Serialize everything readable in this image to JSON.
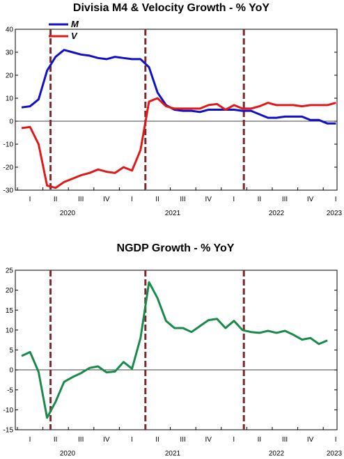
{
  "chart_data": [
    {
      "type": "line",
      "title": "Divisia M4 & Velocity Growth - % YoY",
      "xlabel": "",
      "ylabel": "",
      "ylim": [
        -30,
        40
      ],
      "yticks": [
        -30,
        -20,
        -10,
        0,
        10,
        20,
        30,
        40
      ],
      "grid": false,
      "legend_position": "top-left",
      "x_quarter_labels": [
        "I",
        "II",
        "III",
        "IV",
        "I",
        "II",
        "III",
        "IV",
        "I",
        "II",
        "III",
        "IV",
        "I"
      ],
      "x_year_labels": [
        "2020",
        "2021",
        "2022",
        "2023"
      ],
      "event_lines_month_index": [
        3,
        14,
        26
      ],
      "series": [
        {
          "name": "M",
          "color": "#1010c8",
          "values": [
            6,
            6.5,
            9.5,
            22,
            28,
            31,
            30,
            29,
            28.5,
            27.5,
            27,
            28,
            27.5,
            27,
            27,
            23.5,
            12.5,
            7,
            5,
            4.5,
            4.5,
            4,
            5,
            5,
            5,
            5,
            4.5,
            4.5,
            3,
            1.5,
            1.5,
            2,
            2,
            2,
            0.5,
            0.5,
            -1,
            -1
          ]
        },
        {
          "name": "V",
          "color": "#e01818",
          "values": [
            -3,
            -2.5,
            -10,
            -28,
            -29,
            -26.5,
            -25,
            -23.5,
            -22.5,
            -21,
            -22,
            -22.5,
            -20,
            -21.5,
            -12.5,
            8.5,
            10,
            6.5,
            5.5,
            5.5,
            5.5,
            5.5,
            7,
            7.5,
            5,
            7,
            5.5,
            5.5,
            6.5,
            8,
            7,
            7,
            7,
            6.5,
            7,
            7,
            7,
            8
          ]
        }
      ]
    },
    {
      "type": "line",
      "title": "NGDP Growth - % YoY",
      "xlabel": "",
      "ylabel": "",
      "ylim": [
        -15,
        25
      ],
      "yticks": [
        -15,
        -10,
        -5,
        0,
        5,
        10,
        15,
        20,
        25
      ],
      "grid": false,
      "x_quarter_labels": [
        "I",
        "II",
        "III",
        "IV",
        "I",
        "II",
        "III",
        "IV",
        "I",
        "II",
        "III",
        "IV",
        "I"
      ],
      "x_year_labels": [
        "2020",
        "2021",
        "2022",
        "2023"
      ],
      "event_lines_month_index": [
        3,
        14,
        26
      ],
      "series": [
        {
          "name": "",
          "color": "#1a8a4a",
          "values": [
            3.5,
            4.5,
            -0.5,
            -12,
            -8,
            -3,
            -1.8,
            -0.8,
            0.5,
            0.9,
            -0.6,
            -0.4,
            2,
            0.3,
            8,
            22,
            18,
            12.3,
            10.5,
            10.5,
            9.5,
            11,
            12.5,
            12.8,
            10.5,
            12.3,
            10,
            9.5,
            9.3,
            9.8,
            9.3,
            9.8,
            8.8,
            7.6,
            8,
            6.5,
            7.4
          ]
        }
      ]
    }
  ]
}
